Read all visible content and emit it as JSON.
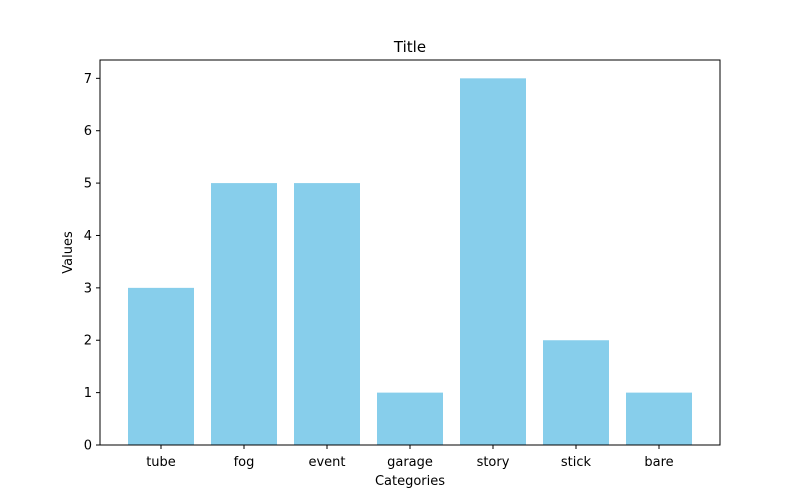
{
  "chart_data": {
    "type": "bar",
    "title": "Title",
    "xlabel": "Categories",
    "ylabel": "Values",
    "categories": [
      "tube",
      "fog",
      "event",
      "garage",
      "story",
      "stick",
      "bare"
    ],
    "values": [
      3,
      5,
      5,
      1,
      7,
      2,
      1
    ],
    "ylim": [
      0,
      7
    ],
    "yticks": [
      0,
      1,
      2,
      3,
      4,
      5,
      6,
      7
    ],
    "bar_color": "#87CEEB",
    "grid": false,
    "legend": "none"
  }
}
